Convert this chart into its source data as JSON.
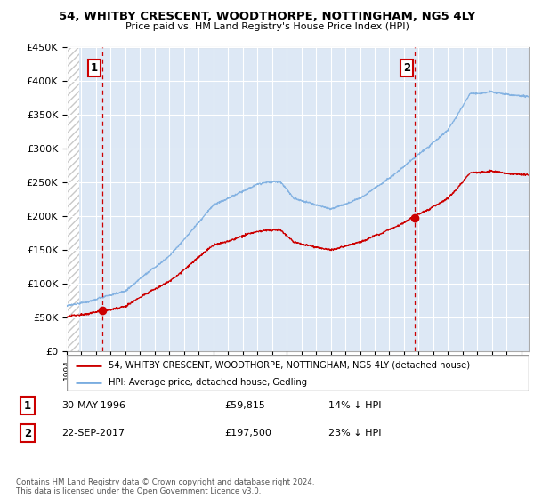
{
  "title_line1": "54, WHITBY CRESCENT, WOODTHORPE, NOTTINGHAM, NG5 4LY",
  "title_line2": "Price paid vs. HM Land Registry's House Price Index (HPI)",
  "ylim": [
    0,
    450000
  ],
  "yticks": [
    0,
    50000,
    100000,
    150000,
    200000,
    250000,
    300000,
    350000,
    400000,
    450000
  ],
  "ytick_labels": [
    "£0",
    "£50K",
    "£100K",
    "£150K",
    "£200K",
    "£250K",
    "£300K",
    "£350K",
    "£400K",
    "£450K"
  ],
  "xlim_start": 1994.0,
  "xlim_end": 2025.5,
  "hpi_color": "#7aade0",
  "price_color": "#cc0000",
  "point1_x": 1996.41,
  "point1_y": 59815,
  "point2_x": 2017.72,
  "point2_y": 197500,
  "legend_line1": "54, WHITBY CRESCENT, WOODTHORPE, NOTTINGHAM, NG5 4LY (detached house)",
  "legend_line2": "HPI: Average price, detached house, Gedling",
  "table_row1_date": "30-MAY-1996",
  "table_row1_price": "£59,815",
  "table_row1_hpi": "14% ↓ HPI",
  "table_row2_date": "22-SEP-2017",
  "table_row2_price": "£197,500",
  "table_row2_hpi": "23% ↓ HPI",
  "footer": "Contains HM Land Registry data © Crown copyright and database right 2024.\nThis data is licensed under the Open Government Licence v3.0.",
  "bg_chart_color": "#dde8f5",
  "bg_hatch_color": "#c8c8c8",
  "grid_color": "#ffffff",
  "point1_hpi_factor": 1.14,
  "point2_hpi_factor": 1.23
}
